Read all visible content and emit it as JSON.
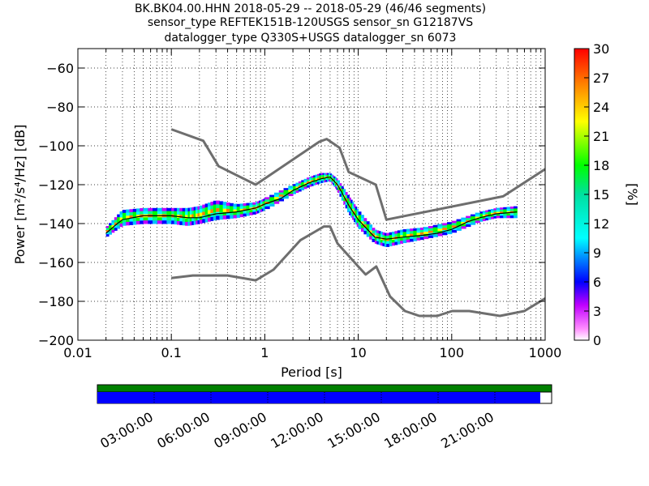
{
  "chart_data": {
    "type": "heatmap",
    "title_lines": [
      "BK.BK04.00.HHN   2018-05-29 -- 2018-05-29  (46/46 segments)",
      "sensor_type REFTEK151B-120USGS sensor_sn G12187VS",
      "datalogger_type Q330S+USGS datalogger_sn 6073"
    ],
    "xlabel": "Period [s]",
    "ylabel": "Power [m²/s⁴/Hz] [dB]",
    "x_scale": "log",
    "xlim": [
      0.01,
      1000
    ],
    "ylim": [
      -200,
      -50
    ],
    "x_ticks": [
      0.01,
      0.1,
      1,
      10,
      100,
      1000
    ],
    "x_tick_labels": [
      "0.01",
      "0.1",
      "1",
      "10",
      "100",
      "1000"
    ],
    "y_ticks": [
      -200,
      -180,
      -160,
      -140,
      -120,
      -100,
      -80,
      -60
    ],
    "y_tick_labels": [
      "−200",
      "−180",
      "−160",
      "−140",
      "−120",
      "−100",
      "−80",
      "−60"
    ],
    "grid": true,
    "colorbar": {
      "label": "[%]",
      "range": [
        0,
        30
      ],
      "ticks": [
        0,
        3,
        6,
        9,
        12,
        15,
        18,
        21,
        24,
        27,
        30
      ],
      "tick_labels": [
        "0",
        "3",
        "6",
        "9",
        "12",
        "15",
        "18",
        "21",
        "24",
        "27",
        "30"
      ]
    },
    "noise_model_high": {
      "x": [
        0.1,
        0.22,
        0.32,
        0.8,
        3.8,
        4.6,
        6.3,
        7.9,
        15.4,
        20,
        354.8,
        1000
      ],
      "y": [
        -91.5,
        -97.4,
        -110.5,
        -120,
        -98,
        -96.5,
        -101,
        -113.5,
        -120,
        -138,
        -126,
        -112
      ]
    },
    "noise_model_low": {
      "x": [
        0.1,
        0.17,
        0.4,
        0.8,
        1.24,
        2.4,
        4.3,
        5,
        6,
        10,
        12,
        15.6,
        21.9,
        31.6,
        45,
        70,
        101,
        154,
        328,
        600,
        1000
      ],
      "y": [
        -168,
        -166.7,
        -166.7,
        -169.2,
        -163.7,
        -148.6,
        -141.5,
        -141.5,
        -150.2,
        -162.1,
        -166.2,
        -162.1,
        -177.5,
        -185,
        -187.5,
        -187.5,
        -185,
        -185,
        -187.5,
        -185,
        -178.5
      ]
    },
    "mode_curve": {
      "x": [
        0.02,
        0.025,
        0.03,
        0.05,
        0.08,
        0.1,
        0.15,
        0.2,
        0.3,
        0.5,
        0.8,
        1,
        1.5,
        2,
        3,
        4,
        5,
        6,
        8,
        10,
        15,
        20,
        30,
        50,
        70,
        100,
        150,
        200,
        300,
        500
      ],
      "y": [
        -145,
        -141,
        -138,
        -136,
        -136,
        -136,
        -137,
        -137,
        -135,
        -134,
        -132,
        -130,
        -127,
        -123,
        -119,
        -117,
        -116,
        -120,
        -131,
        -138,
        -147,
        -148,
        -147,
        -146,
        -145,
        -143,
        -139,
        -137,
        -135,
        -134
      ]
    },
    "psd_bands": [
      {
        "x": [
          0.02,
          0.03,
          0.05,
          0.1,
          0.15,
          0.2,
          0.3,
          0.5,
          0.8,
          1,
          2,
          3,
          4,
          5,
          6,
          8,
          10,
          15,
          20,
          30,
          50,
          100,
          200,
          300,
          500
        ],
        "y_low": [
          -147,
          -141,
          -140,
          -140,
          -141,
          -140,
          -138,
          -137,
          -135,
          -133,
          -125,
          -121,
          -119,
          -118,
          -123,
          -135,
          -142,
          -150,
          -152,
          -150,
          -148,
          -145,
          -139,
          -137,
          -137
        ],
        "y_high": [
          -142,
          -133,
          -132,
          -132,
          -132,
          -131,
          -128,
          -130,
          -129,
          -127,
          -120,
          -116,
          -114,
          -114,
          -117,
          -126,
          -133,
          -143,
          -145,
          -143,
          -142,
          -139,
          -134,
          -132,
          -131
        ]
      }
    ],
    "time_axis": {
      "labels": [
        "03:00:00",
        "06:00:00",
        "09:00:00",
        "12:00:00",
        "15:00:00",
        "18:00:00",
        "21:00:00"
      ],
      "coverage_end_fraction": 0.975,
      "data_color": "#0000ff",
      "gap_bar_color": "#008000"
    },
    "colors": {
      "noise_model": "#6e6e6e",
      "mode_line": "#000000"
    }
  }
}
